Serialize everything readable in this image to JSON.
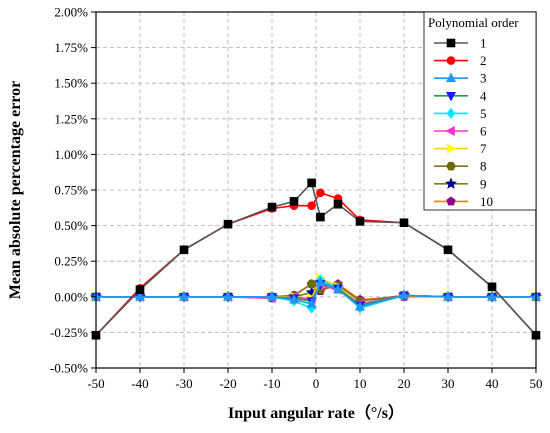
{
  "chart_data": {
    "type": "line",
    "xlabel": "Input angular rate（°/s）",
    "ylabel": "Mean absolute percentage error",
    "xlim": [
      -50,
      50
    ],
    "ylim": [
      -0.5,
      2.0
    ],
    "x_ticks": [
      -50,
      -40,
      -30,
      -20,
      -10,
      0,
      10,
      20,
      30,
      40,
      50
    ],
    "y_ticks": [
      -0.5,
      -0.25,
      0,
      0.25,
      0.5,
      0.75,
      1.0,
      1.25,
      1.5,
      1.75,
      2.0
    ],
    "y_tick_labels": [
      "-0.50%",
      "-0.25%",
      "0.00%",
      "0.25%",
      "0.50%",
      "0.75%",
      "1.00%",
      "1.25%",
      "1.50%",
      "1.75%",
      "2.00%"
    ],
    "grid": true,
    "legend_title": "Polynomial order",
    "legend_position": "top-right",
    "x": [
      -50,
      -40,
      -30,
      -20,
      -10,
      -5,
      -1,
      1,
      5,
      10,
      20,
      30,
      40,
      50
    ],
    "series": [
      {
        "name": "1",
        "color": "#000000",
        "line_color": "#555555",
        "marker": "square",
        "values": [
          -0.27,
          0.05,
          0.33,
          0.51,
          0.63,
          0.67,
          0.8,
          0.56,
          0.65,
          0.53,
          0.52,
          0.33,
          0.07,
          -0.27
        ]
      },
      {
        "name": "2",
        "color": "#ff0000",
        "line_color": "#ff0000",
        "marker": "circle",
        "values": [
          -0.27,
          0.06,
          0.33,
          0.51,
          0.62,
          0.64,
          0.64,
          0.73,
          0.69,
          0.54,
          0.52,
          0.33,
          0.07,
          -0.27
        ]
      },
      {
        "name": "3",
        "color": "#2196f3",
        "line_color": "#2196f3",
        "marker": "triangle-up",
        "values": [
          0.0,
          0.0,
          0.0,
          0.0,
          0.0,
          -0.02,
          -0.05,
          0.1,
          0.05,
          -0.07,
          0.01,
          0.0,
          0.0,
          0.0
        ]
      },
      {
        "name": "4",
        "color": "#1a1aff",
        "line_color": "#1aa34a",
        "marker": "triangle-down",
        "values": [
          0.0,
          0.0,
          0.0,
          0.0,
          0.0,
          -0.01,
          -0.03,
          0.09,
          0.06,
          -0.06,
          0.01,
          0.0,
          0.0,
          0.0
        ]
      },
      {
        "name": "5",
        "color": "#00e5ff",
        "line_color": "#00e5ff",
        "marker": "diamond",
        "values": [
          0.0,
          0.0,
          0.0,
          0.0,
          0.0,
          -0.03,
          -0.08,
          0.12,
          0.06,
          -0.08,
          0.01,
          0.0,
          0.0,
          0.0
        ]
      },
      {
        "name": "6",
        "color": "#ff33cc",
        "line_color": "#ff33cc",
        "marker": "triangle-left",
        "values": [
          0.0,
          0.0,
          0.0,
          0.0,
          -0.01,
          0.0,
          -0.02,
          0.08,
          0.05,
          -0.05,
          0.01,
          0.0,
          0.0,
          0.0
        ]
      },
      {
        "name": "7",
        "color": "#ffff00",
        "line_color": "#ffd000",
        "marker": "triangle-right",
        "values": [
          0.0,
          0.0,
          0.0,
          0.0,
          0.0,
          0.0,
          -0.01,
          0.13,
          0.07,
          -0.06,
          0.01,
          0.0,
          0.0,
          0.0
        ]
      },
      {
        "name": "8",
        "color": "#6b6b00",
        "line_color": "#8a6d1f",
        "marker": "hexagon",
        "values": [
          0.0,
          0.0,
          0.0,
          0.0,
          0.0,
          0.01,
          0.09,
          0.05,
          0.08,
          -0.03,
          0.01,
          0.0,
          0.0,
          0.0
        ]
      },
      {
        "name": "9",
        "color": "#00008b",
        "line_color": "#808000",
        "marker": "star",
        "values": [
          0.0,
          0.0,
          0.0,
          0.0,
          0.0,
          0.0,
          0.03,
          0.1,
          0.06,
          -0.05,
          0.01,
          0.0,
          0.0,
          0.0
        ]
      },
      {
        "name": "10",
        "color": "#8b008b",
        "line_color": "#ff8000",
        "marker": "pentagon",
        "values": [
          0.0,
          0.0,
          0.0,
          0.0,
          -0.01,
          0.01,
          0.09,
          0.04,
          0.09,
          -0.02,
          0.0,
          0.0,
          0.0,
          0.0
        ]
      }
    ]
  }
}
